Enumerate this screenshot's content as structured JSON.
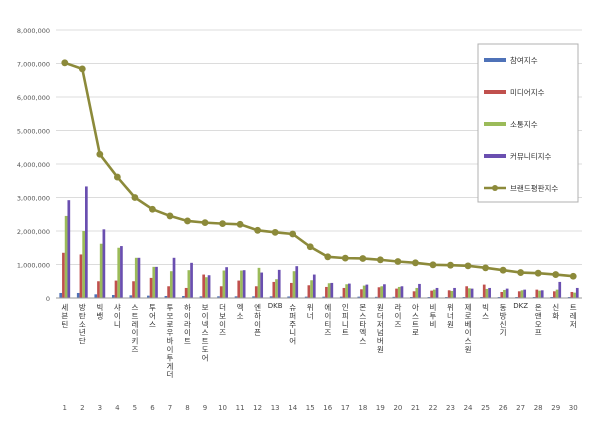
{
  "chart_data": {
    "type": "bar",
    "title": "",
    "xlabel": "",
    "ylabel": "",
    "ylim": [
      0,
      8000000
    ],
    "yticks": [
      0,
      1000000,
      2000000,
      3000000,
      4000000,
      5000000,
      6000000,
      7000000,
      8000000
    ],
    "ytick_labels": [
      "0",
      "1,000,000",
      "2,000,000",
      "3,000,000",
      "4,000,000",
      "5,000,000",
      "6,000,000",
      "7,000,000",
      "8,000,000"
    ],
    "grid": true,
    "legend_position": "right",
    "rank_labels": [
      "1",
      "2",
      "3",
      "4",
      "5",
      "6",
      "7",
      "8",
      "9",
      "10",
      "11",
      "12",
      "13",
      "14",
      "15",
      "16",
      "17",
      "18",
      "19",
      "20",
      "21",
      "22",
      "23",
      "24",
      "25",
      "26",
      "27",
      "28",
      "29",
      "30"
    ],
    "categories": [
      "세븐틴",
      "방탄소년단",
      "빅뱅",
      "샤이니",
      "스트레이키즈",
      "투어스",
      "투모로우바이투게더",
      "하이라이트",
      "보이넥스트도어",
      "더보이즈",
      "엑소",
      "엔하이픈",
      "DKB",
      "슈퍼주니어",
      "위너",
      "에이티즈",
      "인피니트",
      "몬스타엑스",
      "원더저넘버원",
      "라이즈",
      "아스트로",
      "비투비",
      "위너원",
      "제로베이스원",
      "빅스",
      "동방신기",
      "DKZ",
      "온앤오프",
      "신화",
      "트레저"
    ],
    "series": [
      {
        "name": "참여지수",
        "color": "#4f72b8",
        "type": "bar",
        "values": [
          150000,
          150000,
          110000,
          90000,
          80000,
          70000,
          60000,
          60000,
          50000,
          50000,
          50000,
          50000,
          50000,
          45000,
          40000,
          40000,
          40000,
          40000,
          35000,
          35000,
          30000,
          30000,
          30000,
          30000,
          30000,
          30000,
          30000,
          30000,
          30000,
          30000
        ]
      },
      {
        "name": "미디어지수",
        "color": "#c0504d",
        "type": "bar",
        "values": [
          1350000,
          1300000,
          500000,
          520000,
          500000,
          600000,
          350000,
          300000,
          700000,
          350000,
          520000,
          350000,
          480000,
          450000,
          380000,
          330000,
          300000,
          260000,
          320000,
          280000,
          200000,
          220000,
          230000,
          350000,
          400000,
          180000,
          200000,
          250000,
          200000,
          180000
        ]
      },
      {
        "name": "소통지수",
        "color": "#9bbb59",
        "type": "bar",
        "values": [
          2450000,
          2000000,
          1620000,
          1500000,
          1200000,
          930000,
          800000,
          830000,
          620000,
          820000,
          820000,
          900000,
          560000,
          800000,
          530000,
          440000,
          410000,
          370000,
          350000,
          330000,
          300000,
          250000,
          210000,
          290000,
          270000,
          240000,
          230000,
          220000,
          250000,
          160000
        ]
      },
      {
        "name": "커뮤니티지수",
        "color": "#6a4fb0",
        "type": "bar",
        "values": [
          2920000,
          3330000,
          2050000,
          1550000,
          1200000,
          930000,
          1200000,
          1050000,
          680000,
          920000,
          830000,
          760000,
          840000,
          950000,
          700000,
          450000,
          430000,
          400000,
          410000,
          350000,
          420000,
          300000,
          300000,
          280000,
          300000,
          280000,
          250000,
          230000,
          480000,
          300000
        ]
      },
      {
        "name": "브랜드평판지수",
        "color": "#8c8a3a",
        "type": "line",
        "values": [
          7020000,
          6840000,
          4290000,
          3610000,
          3000000,
          2650000,
          2450000,
          2300000,
          2250000,
          2220000,
          2200000,
          2020000,
          1960000,
          1910000,
          1530000,
          1230000,
          1190000,
          1180000,
          1140000,
          1090000,
          1050000,
          990000,
          980000,
          960000,
          900000,
          830000,
          760000,
          740000,
          700000,
          650000
        ]
      }
    ]
  }
}
